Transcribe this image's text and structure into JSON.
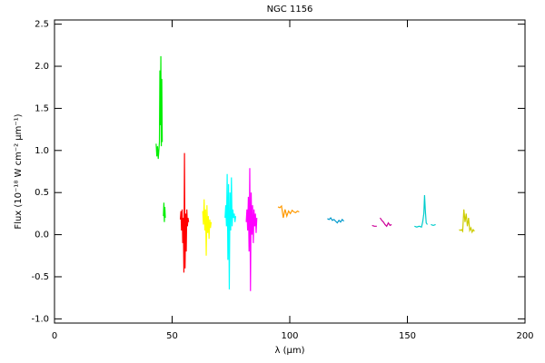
{
  "chart_data": {
    "type": "line",
    "title": "NGC 1156",
    "xlabel": "λ (μm)",
    "ylabel": "Flux (10⁻¹⁸ W cm⁻² μm⁻¹)",
    "xlim": [
      0,
      200
    ],
    "xticks": [
      0,
      50,
      100,
      150,
      200
    ],
    "ylim": [
      -1.05,
      2.55
    ],
    "yticks": [
      {
        "value": -1,
        "label": "-1.0"
      },
      {
        "value": -0.5,
        "label": "-0.5"
      },
      {
        "value": 0,
        "label": "0.0"
      },
      {
        "value": 0.5,
        "label": "0.5"
      },
      {
        "value": 1,
        "label": "1.0"
      },
      {
        "value": 1.5,
        "label": "1.5"
      },
      {
        "value": 2,
        "label": "2.0"
      },
      {
        "value": 2.5,
        "label": "2.5"
      }
    ],
    "grid": false,
    "series": [
      {
        "color": "#00ee00",
        "x": [
          43.2,
          43.5,
          43.8,
          44.1,
          44.4,
          44.6,
          44.8,
          45.0,
          45.2,
          45.4,
          45.6,
          45.8,
          46.0,
          46.3,
          46.5,
          46.7,
          46.9,
          47.1
        ],
        "values": [
          1.08,
          0.93,
          1.05,
          0.9,
          1.02,
          1.1,
          1.95,
          1.3,
          2.12,
          1.05,
          1.85,
          1.1,
          null,
          0.22,
          0.38,
          0.15,
          0.33,
          0.2
        ]
      },
      {
        "color": "#ff0000",
        "x": [
          53.5,
          53.75,
          54.0,
          54.25,
          54.5,
          54.75,
          55.0,
          55.25,
          55.5,
          55.75,
          56.0,
          56.25,
          56.5,
          56.75,
          57.0
        ],
        "values": [
          0.18,
          0.28,
          0.05,
          0.3,
          -0.1,
          0.2,
          -0.45,
          0.97,
          -0.4,
          0.25,
          -0.2,
          0.3,
          0.1,
          0.2,
          0.15
        ]
      },
      {
        "color": "#ffff00",
        "x": [
          63,
          63.3,
          63.6,
          63.9,
          64.2,
          64.5,
          64.8,
          65.1,
          65.4,
          65.7,
          66,
          66.3,
          66.6
        ],
        "values": [
          0.28,
          0.12,
          0.42,
          0.05,
          0.3,
          -0.25,
          0.35,
          0.02,
          0.22,
          -0.05,
          0.18,
          0.08,
          0.15
        ]
      },
      {
        "color": "#00ffff",
        "x": [
          72.5,
          72.8,
          73.1,
          73.4,
          73.7,
          74.0,
          74.3,
          74.6,
          74.9,
          75.2,
          75.5,
          75.8,
          76.1,
          76.4,
          76.7,
          77.0
        ],
        "values": [
          0.2,
          0.35,
          0.1,
          0.72,
          -0.3,
          0.6,
          -0.65,
          0.5,
          0.05,
          0.68,
          0.1,
          0.3,
          0.2,
          0.25,
          0.15,
          0.22
        ]
      },
      {
        "color": "#ff00ff",
        "x": [
          81.5,
          81.8,
          82.1,
          82.4,
          82.7,
          83.0,
          83.3,
          83.6,
          83.9,
          84.2,
          84.5,
          84.8,
          85.1,
          85.4,
          85.7,
          86.0
        ],
        "values": [
          0.15,
          0.3,
          0.05,
          0.45,
          -0.2,
          0.79,
          -0.67,
          0.5,
          0.0,
          0.35,
          -0.1,
          0.3,
          0.1,
          0.25,
          0.02,
          0.2
        ]
      },
      {
        "color": "#ff9900",
        "x": [
          95,
          95.75,
          96.5,
          97.25,
          98,
          98.75,
          99.5,
          100.25,
          101,
          101.75,
          102.5,
          103.25,
          104
        ],
        "values": [
          0.33,
          0.32,
          0.34,
          0.2,
          0.3,
          0.22,
          0.28,
          0.25,
          0.29,
          0.27,
          0.26,
          0.28,
          0.27
        ]
      },
      {
        "color": "#0099cc",
        "x": [
          116,
          116.7,
          117.4,
          118.1,
          118.8,
          119.5,
          120.2,
          120.9,
          121.6,
          122.3,
          123
        ],
        "values": [
          0.19,
          0.18,
          0.2,
          0.17,
          0.18,
          0.16,
          0.14,
          0.17,
          0.15,
          0.18,
          0.16
        ]
      },
      {
        "color": "#cc0099",
        "x": [
          135,
          136,
          137,
          137.7,
          138.4,
          139.1,
          139.8,
          140.5,
          141.2,
          141.9,
          142.6,
          143.3
        ],
        "values": [
          0.11,
          0.1,
          0.1,
          null,
          0.2,
          0.17,
          0.15,
          0.12,
          0.1,
          0.14,
          0.11,
          0.12
        ]
      },
      {
        "color": "#00cccc",
        "x": [
          153,
          154,
          155,
          156,
          156.5,
          157,
          157.3,
          157.6,
          158,
          158.5,
          159,
          160,
          161,
          162
        ],
        "values": [
          0.1,
          0.09,
          0.1,
          0.09,
          0.15,
          0.25,
          0.47,
          0.3,
          0.14,
          0.12,
          null,
          0.12,
          0.11,
          0.12
        ]
      },
      {
        "color": "#cccc00",
        "x": [
          172,
          172.5,
          173,
          173.5,
          174,
          174.5,
          175,
          175.5,
          176,
          176.5,
          177,
          177.5,
          178,
          178.5
        ],
        "values": [
          0.06,
          0.05,
          0.06,
          0.04,
          0.3,
          0.15,
          0.25,
          0.1,
          0.2,
          0.05,
          0.08,
          0.03,
          0.06,
          0.04
        ]
      }
    ]
  }
}
